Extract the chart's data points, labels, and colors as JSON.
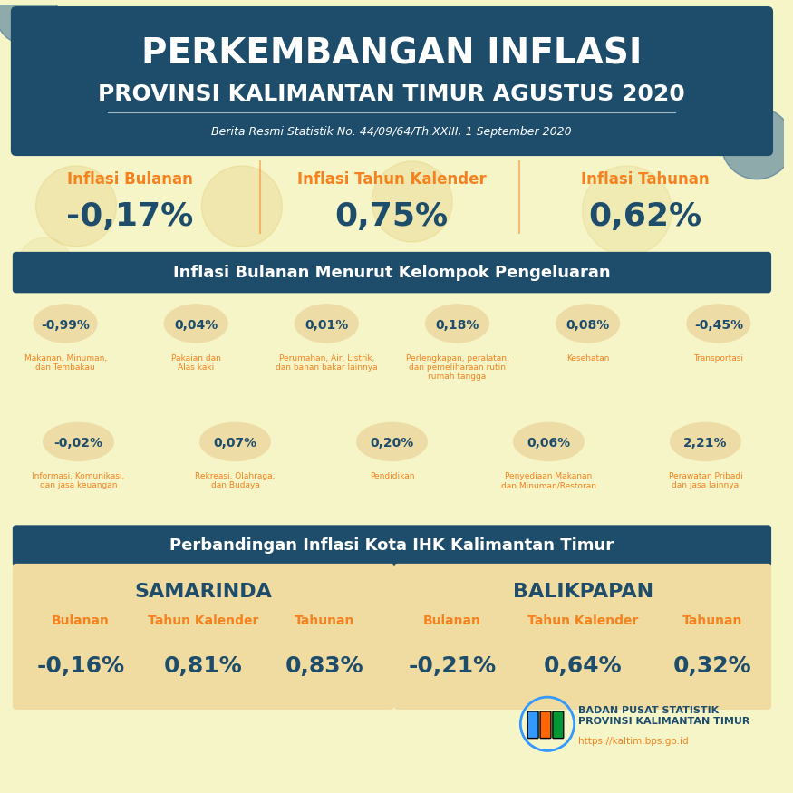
{
  "bg_color": "#f5f5c8",
  "header_bg": "#1e4d6b",
  "header_title1": "PERKEMBANGAN INFLASI",
  "header_title2": "PROVINSI KALIMANTAN TIMUR AGUSTUS 2020",
  "header_subtitle": "Berita Resmi Statistik No. 44/09/64/Th.XXIII, 1 September 2020",
  "orange": "#f5821f",
  "dark_blue": "#1e4d6b",
  "label_color": "#f5821f",
  "value_color": "#1e4d6b",
  "inflasi_labels": [
    "Inflasi Bulanan",
    "Inflasi Tahun Kalender",
    "Inflasi Tahunan"
  ],
  "inflasi_values": [
    "-0,17%",
    "0,75%",
    "0,62%"
  ],
  "section_title": "Inflasi Bulanan Menurut Kelompok Pengeluaran",
  "items_row1": [
    {
      "pct": "-0,99%",
      "label": "Makanan, Minuman,\ndan Tembakau"
    },
    {
      "pct": "0,04%",
      "label": "Pakaian dan\nAlas kaki"
    },
    {
      "pct": "0,01%",
      "label": "Perumahan, Air, Listrik,\ndan bahan bakar lainnya"
    },
    {
      "pct": "0,18%",
      "label": "Perlengkapan, peralatan,\ndan pemeliharaan rutin\nrumah tangga"
    },
    {
      "pct": "0,08%",
      "label": "Kesehatan"
    },
    {
      "pct": "-0,45%",
      "label": "Transportasi"
    }
  ],
  "items_row2": [
    {
      "pct": "-0,02%",
      "label": "Informasi, Komunikasi,\ndan jasa keuangan"
    },
    {
      "pct": "0,07%",
      "label": "Rekreasi, Olahraga,\ndan Budaya"
    },
    {
      "pct": "0,20%",
      "label": "Pendidikan"
    },
    {
      "pct": "0,06%",
      "label": "Penyediaan Makanan\ndan Minuman/Restoran"
    },
    {
      "pct": "2,21%",
      "label": "Perawatan Pribadi\ndan jasa lainnya"
    }
  ],
  "section2_title": "Perbandingan Inflasi Kota IHK Kalimantan Timur",
  "city1": "SAMARINDA",
  "city2": "BALIKPAPAN",
  "col_labels": [
    "Bulanan",
    "Tahun Kalender",
    "Tahunan"
  ],
  "samarinda_values": [
    "-0,16%",
    "0,81%",
    "0,83%"
  ],
  "balikpapan_values": [
    "-0,21%",
    "0,64%",
    "0,32%"
  ],
  "bps_name": "BADAN PUSAT STATISTIK\nPROVINSI KALIMANTAN TIMUR",
  "bps_url": "https://kaltim.bps.go.id",
  "ellipse_color": "#e8c98a",
  "card_color": "#f0dca0"
}
